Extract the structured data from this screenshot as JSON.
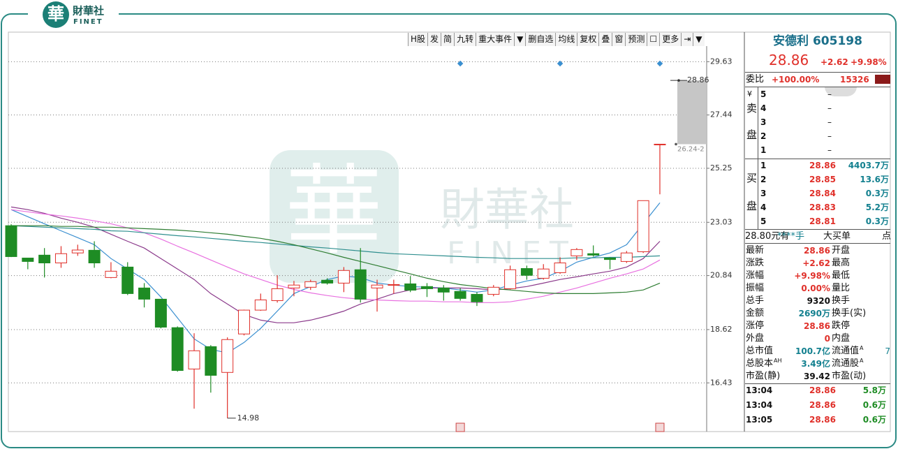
{
  "logo": {
    "mark": "華",
    "name": "財華社",
    "sub": "FINET"
  },
  "watermark": {
    "mark": "華",
    "name": "財華社",
    "sub": "FINET"
  },
  "toolbar": [
    "H股",
    "发",
    "简",
    "九转",
    "重大事件",
    "删自选",
    "均线",
    "复权",
    "叠",
    "窗",
    "预测",
    "更多"
  ],
  "chart_data": {
    "type": "candlestick",
    "ylim": [
      14.4,
      30.3
    ],
    "yticks": [
      16.43,
      18.62,
      20.84,
      23.03,
      25.25,
      27.44,
      29.63
    ],
    "grid": true,
    "up_color": "#e0302a",
    "down_color": "#1e8c24",
    "candles": {
      "open": [
        22.89,
        21.56,
        21.68,
        21.36,
        21.77,
        21.88,
        20.76,
        21.19,
        20.33,
        19.87,
        18.7,
        17.0,
        17.92,
        16.86,
        18.44,
        19.42,
        19.81,
        20.33,
        20.36,
        20.65,
        20.53,
        21.08,
        20.33,
        20.44,
        20.5,
        20.39,
        20.33,
        20.19,
        20.07,
        20.07,
        20.3,
        21.13,
        20.73,
        20.96,
        21.65,
        21.74,
        21.56,
        21.42,
        21.82,
        26.24
      ],
      "high": [
        22.95,
        21.56,
        21.97,
        22.05,
        22.11,
        22.25,
        21.39,
        21.39,
        20.53,
        19.87,
        18.75,
        18.47,
        17.98,
        18.3,
        19.44,
        20.1,
        20.85,
        20.62,
        20.67,
        20.73,
        21.19,
        21.97,
        20.67,
        20.67,
        20.82,
        20.53,
        20.45,
        20.33,
        20.16,
        20.45,
        21.25,
        21.25,
        21.31,
        21.59,
        21.97,
        22.08,
        21.59,
        21.85,
        23.92,
        26.24
      ],
      "low": [
        21.6,
        21.1,
        20.76,
        21.16,
        21.65,
        21.16,
        20.73,
        20.04,
        19.53,
        18.67,
        16.89,
        15.37,
        16.03,
        14.98,
        18.38,
        19.39,
        19.73,
        19.99,
        20.25,
        20.47,
        20.16,
        19.73,
        19.36,
        20.1,
        20.16,
        19.96,
        19.81,
        19.81,
        19.59,
        19.99,
        20.27,
        20.67,
        20.67,
        20.91,
        21.48,
        21.62,
        21.1,
        21.36,
        21.77,
        24.18
      ],
      "close": [
        21.62,
        21.42,
        21.36,
        21.74,
        21.89,
        21.36,
        21.02,
        20.1,
        19.87,
        18.72,
        16.94,
        17.75,
        16.74,
        18.21,
        19.42,
        19.84,
        20.3,
        20.45,
        20.59,
        20.53,
        21.05,
        19.87,
        20.45,
        20.47,
        20.24,
        20.3,
        20.16,
        19.9,
        19.76,
        20.36,
        21.08,
        20.85,
        21.11,
        21.36,
        21.91,
        21.68,
        21.5,
        21.77,
        23.92,
        26.24
      ]
    },
    "series": [
      {
        "color": "#3a8fd0",
        "values": [
          23.55,
          23.26,
          22.97,
          22.68,
          22.4,
          22.11,
          21.54,
          21.11,
          20.68,
          19.96,
          19.1,
          18.24,
          17.81,
          17.66,
          18.09,
          18.67,
          19.38,
          20.1,
          20.39,
          20.68,
          20.82,
          20.76,
          20.53,
          20.45,
          20.39,
          20.36,
          20.33,
          20.25,
          20.16,
          20.25,
          20.45,
          20.62,
          20.73,
          21.02,
          21.39,
          21.59,
          21.77,
          22.11,
          22.97,
          23.83
        ]
      },
      {
        "color": "#8b3a8b",
        "values": [
          23.66,
          23.55,
          23.4,
          23.2,
          23.03,
          22.83,
          22.54,
          22.25,
          21.97,
          21.54,
          21.11,
          20.68,
          20.1,
          19.67,
          19.24,
          19.01,
          18.9,
          18.9,
          19.01,
          19.18,
          19.38,
          19.67,
          19.87,
          20.1,
          20.25,
          20.33,
          20.33,
          20.33,
          20.3,
          20.25,
          20.3,
          20.39,
          20.53,
          20.68,
          20.79,
          20.91,
          21.02,
          21.19,
          21.54,
          22.25
        ]
      },
      {
        "color": "#e870e0",
        "values": [
          23.55,
          23.46,
          23.37,
          23.29,
          23.2,
          23.09,
          22.97,
          22.8,
          22.6,
          22.34,
          22.05,
          21.77,
          21.48,
          21.19,
          20.91,
          20.68,
          20.45,
          20.27,
          20.13,
          20.02,
          19.93,
          19.87,
          19.84,
          19.81,
          19.79,
          19.79,
          19.76,
          19.76,
          19.73,
          19.73,
          19.76,
          19.87,
          19.99,
          20.16,
          20.33,
          20.53,
          20.73,
          20.91,
          21.11,
          21.48
        ]
      },
      {
        "color": "#2f8f8f",
        "values": [
          22.89,
          22.86,
          22.83,
          22.8,
          22.77,
          22.74,
          22.68,
          22.66,
          22.6,
          22.54,
          22.48,
          22.43,
          22.37,
          22.31,
          22.25,
          22.2,
          22.14,
          22.08,
          22.02,
          21.97,
          21.91,
          21.85,
          21.79,
          21.74,
          21.71,
          21.68,
          21.65,
          21.62,
          21.59,
          21.57,
          21.54,
          21.54,
          21.54,
          21.54,
          21.57,
          21.57,
          21.59,
          21.59,
          21.62,
          21.65
        ]
      },
      {
        "color": "#2e7d32",
        "values": [
          22.89,
          22.89,
          22.89,
          22.86,
          22.86,
          22.83,
          22.83,
          22.8,
          22.77,
          22.74,
          22.71,
          22.66,
          22.6,
          22.54,
          22.45,
          22.37,
          22.25,
          22.11,
          21.94,
          21.77,
          21.59,
          21.42,
          21.25,
          21.08,
          20.91,
          20.73,
          20.59,
          20.47,
          20.39,
          20.3,
          20.25,
          20.19,
          20.13,
          20.1,
          20.1,
          20.1,
          20.13,
          20.16,
          20.25,
          20.53
        ]
      }
    ],
    "current_price": 28.86,
    "range_low": 26.24,
    "range_label": "26.24-2"
  },
  "quote": {
    "name": "安德利 605198",
    "price": "28.86",
    "change": "+2.62",
    "pct": "+9.98%",
    "wb_label": "委比",
    "wb_value": "+100.00%",
    "wb_diff": "15326",
    "currency": "¥",
    "sell_label": [
      "卖",
      "盘"
    ],
    "sell": [
      [
        "5",
        "–"
      ],
      [
        "4",
        "–"
      ],
      [
        "3",
        "–"
      ],
      [
        "2",
        "–"
      ],
      [
        "1",
        "–"
      ]
    ],
    "buy_label": [
      "买",
      "盘"
    ],
    "buy": [
      [
        "1",
        "28.86",
        "4403.7万"
      ],
      [
        "2",
        "28.85",
        "13.6万"
      ],
      [
        "3",
        "28.84",
        "0.3万"
      ],
      [
        "4",
        "28.83",
        "5.2万"
      ],
      [
        "5",
        "28.81",
        "0.3万"
      ]
    ],
    "big_order": [
      "28.80元有",
      "****手",
      "大买单",
      "点"
    ],
    "stats": [
      {
        "label": "最新",
        "value": "28.86",
        "label2": "开盘"
      },
      {
        "label": "涨跌",
        "value": "+2.62",
        "label2": "最高"
      },
      {
        "label": "涨幅",
        "value": "+9.98%",
        "label2": "最低"
      },
      {
        "label": "振幅",
        "value": "0.00%",
        "label2": "量比"
      },
      {
        "label": "总手",
        "value": "9320",
        "label2": "换手"
      },
      {
        "label": "金额",
        "value": "2690万",
        "label2": "换手(实)"
      },
      {
        "label": "涨停",
        "value": "28.86",
        "label2": "跌停"
      },
      {
        "label": "外盘",
        "value": "0",
        "label2": "内盘"
      },
      {
        "label": "总市值",
        "value": "100.7亿",
        "label2": "流通值",
        "label2_sup": "A",
        "value2": "7"
      },
      {
        "label": "总股本",
        "label_sup": "AH",
        "value": "3.49亿",
        "label2": "流通股",
        "label2_sup": "A"
      },
      {
        "label": "市盈(静)",
        "value": "39.42",
        "label2": "市盈(动)"
      }
    ],
    "ticks": [
      [
        "13:04",
        "28.86",
        "5.8万"
      ],
      [
        "13:04",
        "28.86",
        "0.6万"
      ],
      [
        "13:05",
        "28.86",
        "0.6万"
      ]
    ]
  }
}
